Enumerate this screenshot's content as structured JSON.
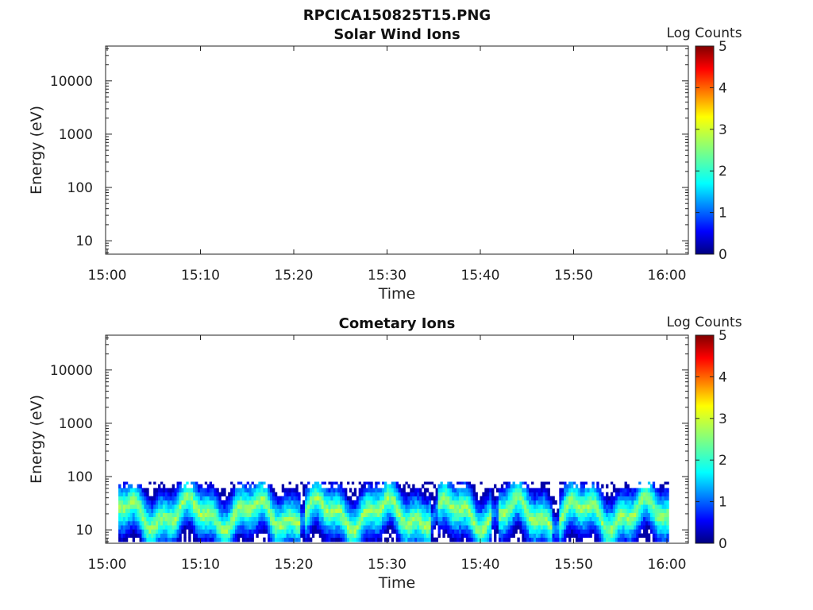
{
  "figure_title": "RPCICA150825T15.PNG",
  "chart_data": [
    {
      "type": "heatmap",
      "title": "Solar Wind Ions",
      "xlabel": "Time",
      "ylabel": "Energy (eV)",
      "x_ticks": [
        "15:00",
        "15:10",
        "15:20",
        "15:30",
        "15:40",
        "15:50",
        "16:00"
      ],
      "y_ticks": [
        "10",
        "100",
        "1000",
        "10000"
      ],
      "y_scale": "log",
      "colorbar": {
        "label": "Log Counts",
        "ticks": [
          "0",
          "1",
          "2",
          "3",
          "4",
          "5"
        ],
        "range": [
          0,
          5
        ],
        "colormap": "jet"
      },
      "data": "empty"
    },
    {
      "type": "heatmap",
      "title": "Cometary Ions",
      "xlabel": "Time",
      "ylabel": "Energy (eV)",
      "x_ticks": [
        "15:00",
        "15:10",
        "15:20",
        "15:30",
        "15:40",
        "15:50",
        "16:00"
      ],
      "y_ticks": [
        "10",
        "100",
        "1000",
        "10000"
      ],
      "y_scale": "log",
      "colorbar": {
        "label": "Log Counts",
        "ticks": [
          "0",
          "1",
          "2",
          "3",
          "4",
          "5"
        ],
        "range": [
          0,
          5
        ],
        "colormap": "jet"
      },
      "band": {
        "time_range_min": [
          1.2,
          60.0
        ],
        "energy_range_eV": [
          6,
          80
        ],
        "peak_log_counts": 2.7,
        "gaps_at_min": [
          20.8,
          35.0,
          41.5,
          48.0
        ]
      }
    }
  ]
}
